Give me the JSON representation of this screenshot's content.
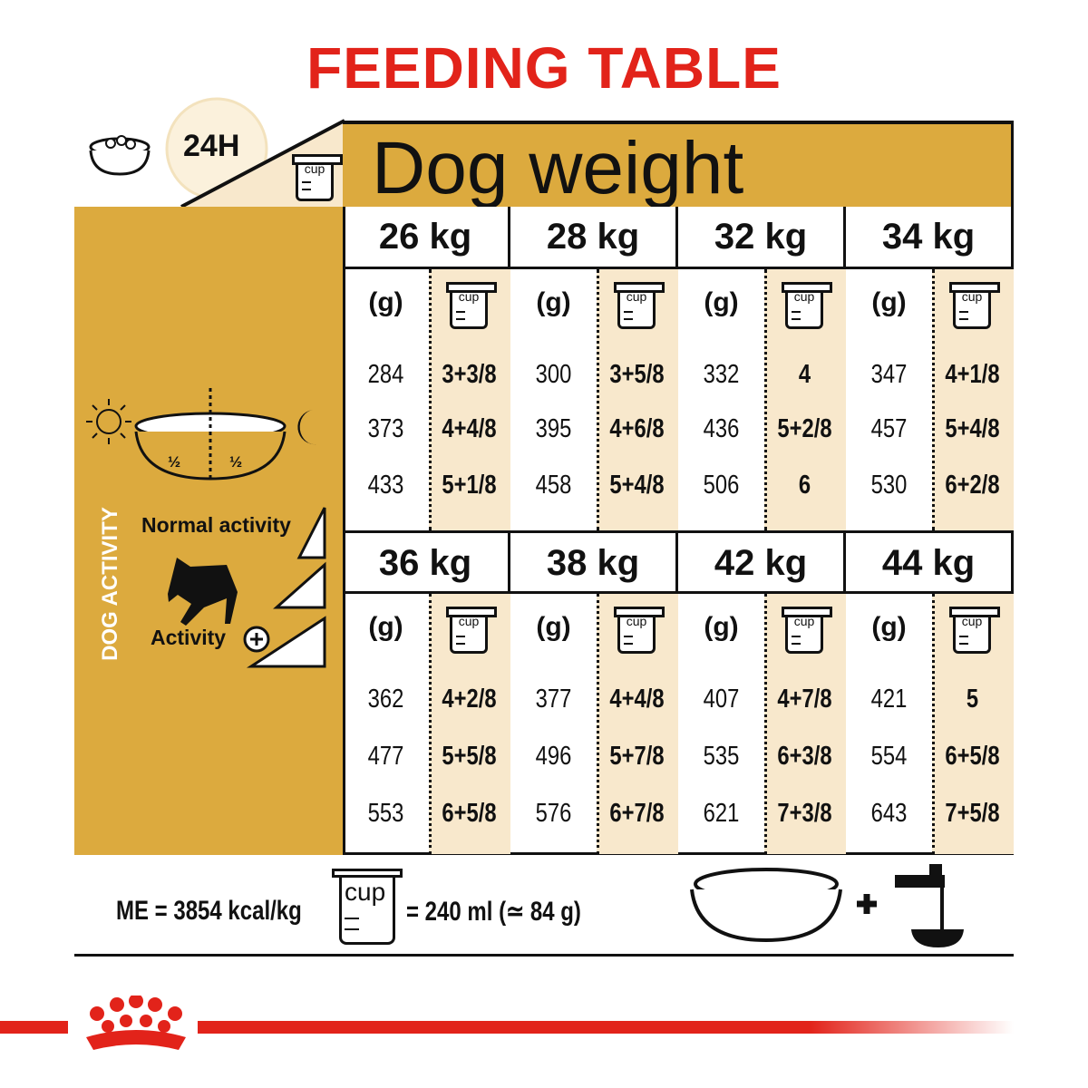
{
  "title": "FEEDING TABLE",
  "header": {
    "daily_label": "24H",
    "dog_weight": "Dog weight",
    "cup_label": "cup"
  },
  "side": {
    "dog_activity": "DOG ACTIVITY",
    "normal_activity": "Normal activity",
    "activity_plus": "Activity",
    "half_left": "½",
    "half_right": "½"
  },
  "colors": {
    "gold": "#dcaa3e",
    "cream": "#f8e8cc",
    "red": "#e2231a"
  },
  "grams_label": "(g)",
  "weights": [
    {
      "kg": "26 kg",
      "rows": [
        [
          "284",
          "3+3/8"
        ],
        [
          "373",
          "4+4/8"
        ],
        [
          "433",
          "5+1/8"
        ]
      ]
    },
    {
      "kg": "28 kg",
      "rows": [
        [
          "300",
          "3+5/8"
        ],
        [
          "395",
          "4+6/8"
        ],
        [
          "458",
          "5+4/8"
        ]
      ]
    },
    {
      "kg": "32 kg",
      "rows": [
        [
          "332",
          "4"
        ],
        [
          "436",
          "5+2/8"
        ],
        [
          "506",
          "6"
        ]
      ]
    },
    {
      "kg": "34 kg",
      "rows": [
        [
          "347",
          "4+1/8"
        ],
        [
          "457",
          "5+4/8"
        ],
        [
          "530",
          "6+2/8"
        ]
      ]
    },
    {
      "kg": "36 kg",
      "rows": [
        [
          "362",
          "4+2/8"
        ],
        [
          "477",
          "5+5/8"
        ],
        [
          "553",
          "6+5/8"
        ]
      ]
    },
    {
      "kg": "38 kg",
      "rows": [
        [
          "377",
          "4+4/8"
        ],
        [
          "496",
          "5+7/8"
        ],
        [
          "576",
          "6+7/8"
        ]
      ]
    },
    {
      "kg": "42 kg",
      "rows": [
        [
          "407",
          "4+7/8"
        ],
        [
          "535",
          "6+3/8"
        ],
        [
          "621",
          "7+3/8"
        ]
      ]
    },
    {
      "kg": "44 kg",
      "rows": [
        [
          "421",
          "5"
        ],
        [
          "554",
          "6+5/8"
        ],
        [
          "643",
          "7+5/8"
        ]
      ]
    }
  ],
  "footer": {
    "energy": "ME = 3854 kcal/kg",
    "cup_label": "cup",
    "cup_equiv": "= 240 ml (≃ 84 g)"
  }
}
